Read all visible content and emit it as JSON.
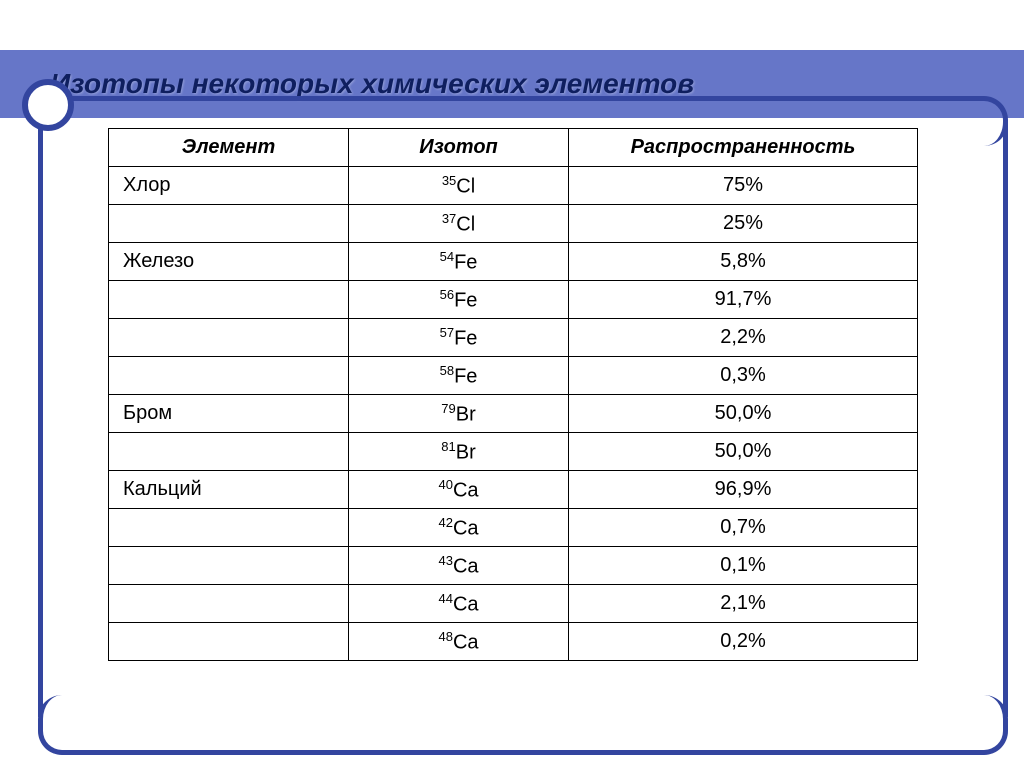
{
  "title": "Изотопы некоторых химических элементов",
  "table": {
    "headers": [
      "Элемент",
      "Изотоп",
      "Распространенность"
    ],
    "rows": [
      {
        "element": "Хлор",
        "mass": "35",
        "symbol": "Cl",
        "abundance": "75%"
      },
      {
        "element": "",
        "mass": "37",
        "symbol": "Cl",
        "abundance": "25%"
      },
      {
        "element": "Железо",
        "mass": "54",
        "symbol": "Fe",
        "abundance": "5,8%"
      },
      {
        "element": "",
        "mass": "56",
        "symbol": "Fe",
        "abundance": "91,7%"
      },
      {
        "element": "",
        "mass": "57",
        "symbol": "Fe",
        "abundance": "2,2%"
      },
      {
        "element": "",
        "mass": "58",
        "symbol": "Fe",
        "abundance": "0,3%"
      },
      {
        "element": "Бром",
        "mass": "79",
        "symbol": "Br",
        "abundance": "50,0%"
      },
      {
        "element": "",
        "mass": "81",
        "symbol": "Br",
        "abundance": "50,0%"
      },
      {
        "element": "Кальций",
        "mass": "40",
        "symbol": "Ca",
        "abundance": "96,9%"
      },
      {
        "element": "",
        "mass": "42",
        "symbol": "Ca",
        "abundance": "0,7%"
      },
      {
        "element": "",
        "mass": "43",
        "symbol": "Ca",
        "abundance": "0,1%"
      },
      {
        "element": "",
        "mass": "44",
        "symbol": "Ca",
        "abundance": "2,1%"
      },
      {
        "element": "",
        "mass": "48",
        "symbol": "Ca",
        "abundance": "0,2%"
      }
    ]
  },
  "colors": {
    "title_bar_bg": "#6676c8",
    "title_text": "#0f1f5f",
    "accent_dark": "#33459f",
    "border": "#000000",
    "background": "#ffffff"
  }
}
